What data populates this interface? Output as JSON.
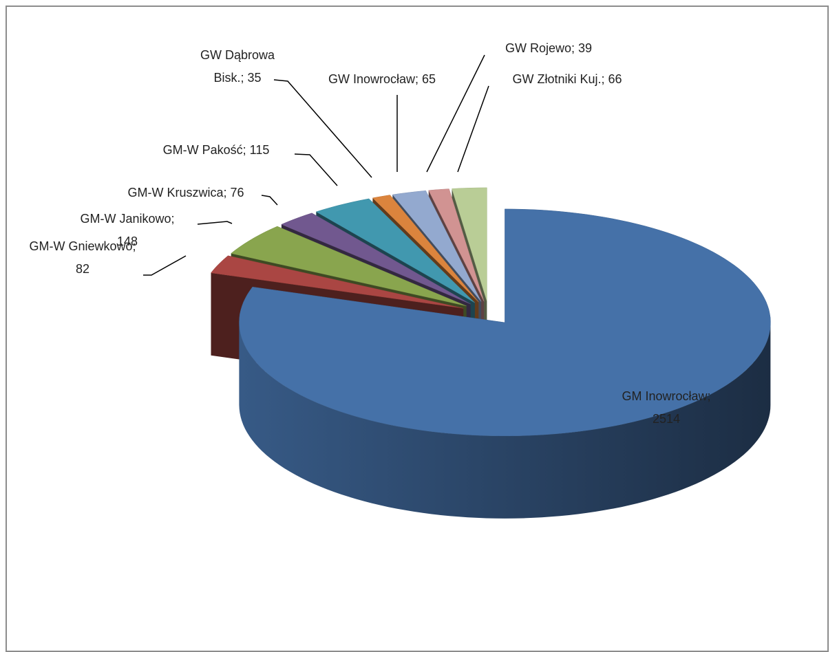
{
  "chart_data": {
    "type": "pie",
    "categories": [
      "GM Inowrocław",
      "GM-W Gniewkowo",
      "GM-W Janikowo",
      "GM-W Kruszwica",
      "GM-W Pakość",
      "GW Dąbrowa Bisk.",
      "GW Inowrocław",
      "GW Rojewo",
      "GW Złotniki Kuj."
    ],
    "values": [
      2514,
      82,
      148,
      76,
      115,
      35,
      65,
      39,
      66
    ],
    "colors": [
      "#4571a8",
      "#aa4643",
      "#89a54e",
      "#71588f",
      "#4198af",
      "#db843d",
      "#93a9cf",
      "#d19392",
      "#b9cd96"
    ],
    "label_separator": "; "
  }
}
